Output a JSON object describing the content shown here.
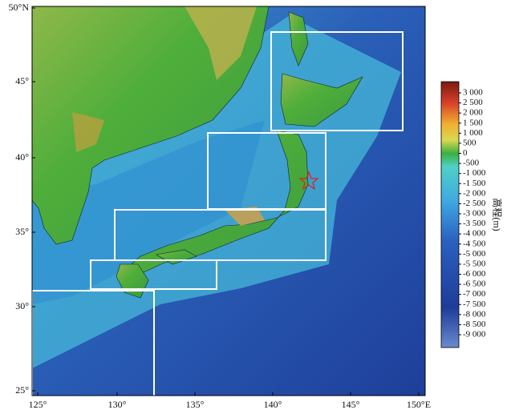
{
  "map": {
    "x_labels": [
      "125°",
      "130°",
      "135°",
      "140°",
      "145°",
      "150°E"
    ],
    "y_labels": [
      "50°N",
      "45°",
      "40°",
      "35°",
      "30°",
      "25°"
    ],
    "colorbar": {
      "title": "高程(m)",
      "labels": [
        "3 000",
        "2 500",
        "2 000",
        "1 500",
        "1 000",
        "500",
        "0",
        "-500",
        "-1 000",
        "-1 500",
        "-2 000",
        "-2 500",
        "-3 000",
        "-3 500",
        "-4 000",
        "-4 500",
        "-5 000",
        "-5 500",
        "-6 000",
        "-6 500",
        "-7 000",
        "-7 500",
        "-8 000",
        "-8 500",
        "-9 000"
      ]
    }
  }
}
